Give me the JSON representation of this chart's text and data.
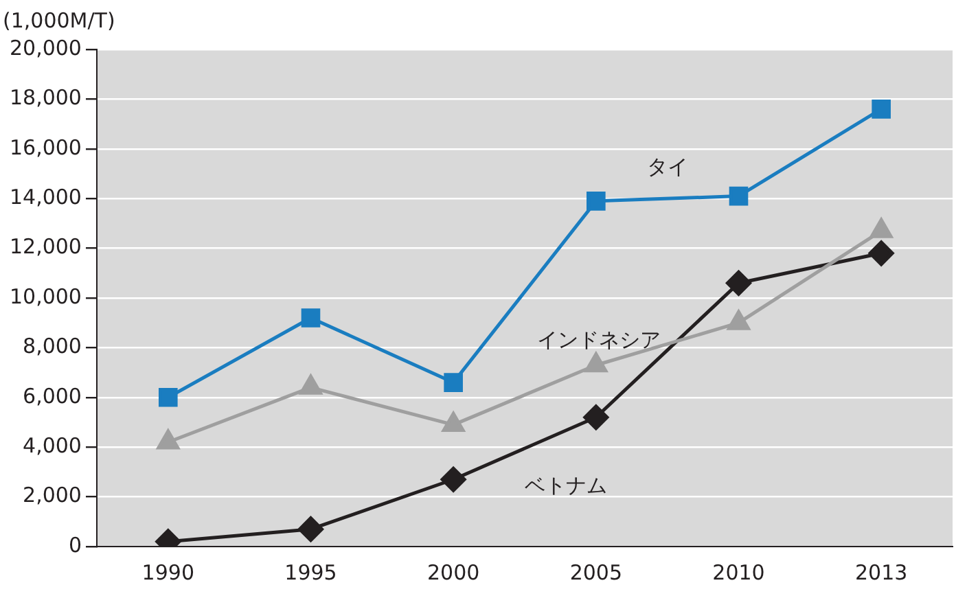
{
  "chart_data": {
    "type": "line",
    "ylabel": "(1,000M/T)",
    "categories": [
      "1990",
      "1995",
      "2000",
      "2005",
      "2010",
      "2013"
    ],
    "series": [
      {
        "name": "タイ",
        "color": "#1a7dc0",
        "marker": "square",
        "values": [
          6000,
          9200,
          6600,
          13900,
          14100,
          17600
        ]
      },
      {
        "name": "インドネシア",
        "color": "#9f9f9f",
        "marker": "triangle",
        "values": [
          4200,
          6400,
          4900,
          7300,
          9000,
          12700
        ]
      },
      {
        "name": "ベトナム",
        "color": "#231f20",
        "marker": "diamond",
        "values": [
          200,
          700,
          2700,
          5200,
          10600,
          11800
        ]
      }
    ],
    "ylim": [
      0,
      20000
    ],
    "yticks": [
      0,
      {
        "value": 2000,
        "label": "2,000"
      },
      {
        "value": 4000,
        "label": "4,000"
      },
      {
        "value": 6000,
        "label": "6,000"
      },
      {
        "value": 8000,
        "label": "8,000"
      },
      {
        "value": 10000,
        "label": "10,000"
      },
      {
        "value": 12000,
        "label": "12,000"
      },
      {
        "value": 14000,
        "label": "14,000"
      },
      {
        "value": 16000,
        "label": "16,000"
      },
      {
        "value": 18000,
        "label": "18,000"
      },
      {
        "value": 20000,
        "label": "20,000"
      }
    ],
    "grid": "y",
    "legend": false,
    "line_style": "solid"
  }
}
